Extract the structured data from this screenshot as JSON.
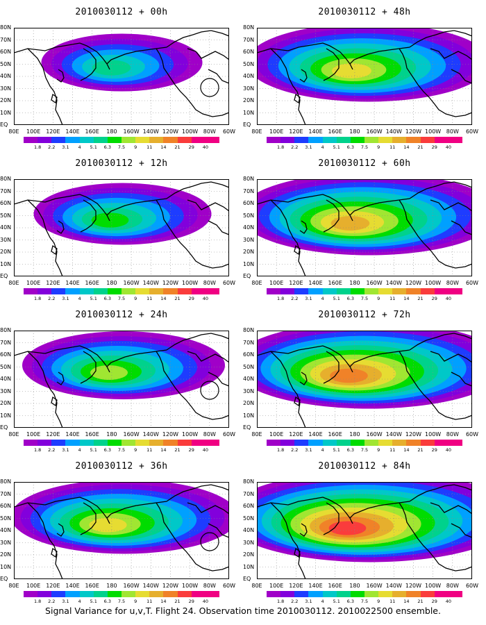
{
  "panels": [
    {
      "title": "2010030112 + 00h",
      "intensity": 0.9,
      "spread": 0.55,
      "circle": true
    },
    {
      "title": "2010030112 + 12h",
      "intensity": 1.3,
      "spread": 0.65,
      "circle": false
    },
    {
      "title": "2010030112 + 24h",
      "intensity": 1.6,
      "spread": 0.8,
      "circle": true
    },
    {
      "title": "2010030112 + 36h",
      "intensity": 2.0,
      "spread": 0.95,
      "circle": true
    },
    {
      "title": "2010030112 + 48h",
      "intensity": 1.9,
      "spread": 1.05,
      "circle": false
    },
    {
      "title": "2010030112 + 60h",
      "intensity": 2.3,
      "spread": 1.15,
      "circle": false
    },
    {
      "title": "2010030112 + 72h",
      "intensity": 2.7,
      "spread": 1.25,
      "circle": false
    },
    {
      "title": "2010030112 + 84h",
      "intensity": 3.0,
      "spread": 1.35,
      "circle": false
    }
  ],
  "lat_labels": [
    "80N",
    "70N",
    "60N",
    "50N",
    "40N",
    "30N",
    "20N",
    "10N",
    "EQ"
  ],
  "lon_labels": [
    "80E",
    "100E",
    "120E",
    "140E",
    "160E",
    "180",
    "160W",
    "140W",
    "120W",
    "100W",
    "80W",
    "60W"
  ],
  "colorbar_labels": [
    "1.8",
    "2.2",
    "3.1",
    "4",
    "5.1",
    "6.3",
    "7.5",
    "9",
    "11",
    "14",
    "21",
    "29",
    "40"
  ],
  "colorbar_colors": [
    "#a000c8",
    "#8200dc",
    "#1e3cff",
    "#00a0ff",
    "#00c8c8",
    "#00d28c",
    "#00dc00",
    "#a0e632",
    "#e6dc32",
    "#e6af2d",
    "#f08228",
    "#fa3c3c",
    "#f00082"
  ],
  "footer": "Signal Variance for u,v,T. Flight 24. Observation time 2010030112. 2010022500 ensemble."
}
